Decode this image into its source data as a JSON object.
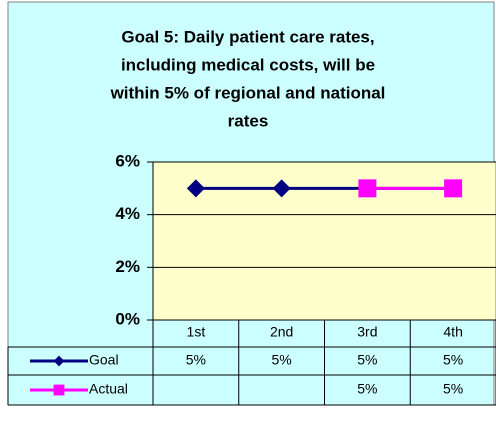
{
  "chart_data": {
    "type": "line",
    "title": [
      "Goal 5: Daily patient care rates,",
      "including medical costs, will be",
      "within 5% of regional and national",
      "rates"
    ],
    "categories": [
      "1st",
      "2nd",
      "3rd",
      "4th"
    ],
    "series": [
      {
        "name": "Goal",
        "color": "#000080",
        "marker": "diamond",
        "values": [
          5,
          5,
          5,
          5
        ],
        "value_labels": [
          "5%",
          "5%",
          "5%",
          "5%"
        ]
      },
      {
        "name": "Actual",
        "color": "#ff00ff",
        "marker": "square",
        "values": [
          null,
          null,
          5,
          5
        ],
        "value_labels": [
          null,
          null,
          "5%",
          "5%"
        ]
      }
    ],
    "ylim": [
      0,
      6
    ],
    "yticks": [
      {
        "value": 0,
        "label": "0%"
      },
      {
        "value": 2,
        "label": "2%"
      },
      {
        "value": 4,
        "label": "4%"
      },
      {
        "value": 6,
        "label": "6%"
      }
    ],
    "grid": true,
    "data_table": true
  }
}
